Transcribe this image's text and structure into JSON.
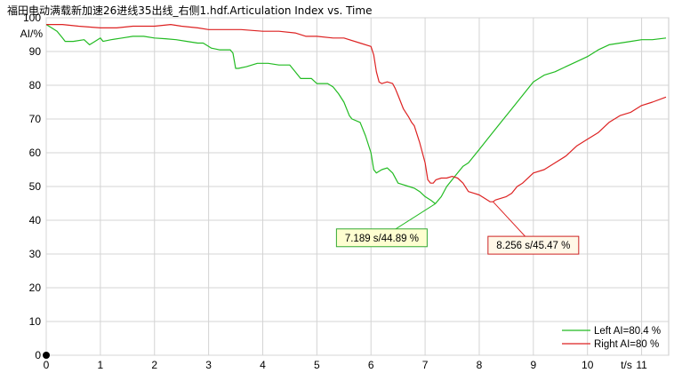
{
  "window": {
    "title": "福田电动满载新加速26进线35出线_右侧1.hdf.Articulation Index vs. Time"
  },
  "chart_data": {
    "type": "line",
    "title": "福田电动满载新加速26进线35出线_右侧1.hdf.Articulation Index vs. Time",
    "xlabel": "t/s",
    "ylabel": "AI/%",
    "xlim": [
      0,
      11.5
    ],
    "ylim": [
      0,
      100
    ],
    "x_ticks": [
      0,
      1,
      2,
      3,
      4,
      5,
      6,
      7,
      8,
      9,
      10,
      11
    ],
    "y_ticks": [
      0,
      10,
      20,
      30,
      40,
      50,
      60,
      70,
      80,
      90,
      100
    ],
    "grid": true,
    "legend_position": "bottom-right",
    "series": [
      {
        "name": "Left AI=80.4 %",
        "color": "#22bb22",
        "x": [
          0,
          0.1,
          0.2,
          0.3,
          0.35,
          0.5,
          0.7,
          0.8,
          0.9,
          1.0,
          1.05,
          1.2,
          1.4,
          1.6,
          1.8,
          2.0,
          2.2,
          2.4,
          2.6,
          2.8,
          2.9,
          3.0,
          3.05,
          3.2,
          3.4,
          3.45,
          3.5,
          3.55,
          3.7,
          3.9,
          4.1,
          4.3,
          4.5,
          4.6,
          4.7,
          4.8,
          4.9,
          5.0,
          5.2,
          5.3,
          5.4,
          5.5,
          5.6,
          5.65,
          5.8,
          5.9,
          6.0,
          6.05,
          6.1,
          6.15,
          6.2,
          6.3,
          6.4,
          6.5,
          6.6,
          6.7,
          6.8,
          6.9,
          7.0,
          7.1,
          7.189,
          7.3,
          7.4,
          7.5,
          7.6,
          7.7,
          7.8,
          8.0,
          8.2,
          8.4,
          8.6,
          8.8,
          9.0,
          9.2,
          9.4,
          9.6,
          9.8,
          10.0,
          10.2,
          10.4,
          10.6,
          10.8,
          11.0,
          11.2,
          11.45
        ],
        "y": [
          98,
          97,
          96,
          94,
          93,
          93,
          93.5,
          92,
          93,
          94,
          93,
          93.5,
          94,
          94.5,
          94.5,
          94,
          93.8,
          93.5,
          93,
          92.5,
          92.5,
          91.5,
          91,
          90.5,
          90.5,
          89.5,
          85,
          85,
          85.5,
          86.5,
          86.5,
          86,
          86,
          84,
          82,
          82,
          82,
          80.5,
          80.5,
          79.5,
          77.5,
          75,
          71,
          70,
          69,
          65,
          60,
          55,
          54,
          54.5,
          55,
          55.5,
          54,
          51,
          50.5,
          50,
          49.5,
          48.5,
          47,
          46,
          44.89,
          47,
          50,
          52,
          54,
          56,
          57,
          61,
          65,
          69,
          73,
          77,
          81,
          83,
          84,
          85.5,
          87,
          88.5,
          90.5,
          92,
          92.5,
          93,
          93.5,
          93.5,
          94
        ]
      },
      {
        "name": "Right AI=80 %",
        "color": "#dd2222",
        "x": [
          0,
          0.3,
          0.6,
          1.0,
          1.3,
          1.6,
          2.0,
          2.3,
          2.5,
          2.8,
          3.0,
          3.3,
          3.6,
          4.0,
          4.3,
          4.6,
          4.8,
          5.0,
          5.3,
          5.5,
          5.8,
          6.0,
          6.05,
          6.1,
          6.15,
          6.2,
          6.3,
          6.4,
          6.45,
          6.5,
          6.6,
          6.7,
          6.75,
          6.8,
          6.9,
          7.0,
          7.05,
          7.1,
          7.15,
          7.2,
          7.3,
          7.4,
          7.5,
          7.6,
          7.7,
          7.8,
          7.9,
          8.0,
          8.1,
          8.2,
          8.256,
          8.3,
          8.4,
          8.5,
          8.6,
          8.7,
          8.8,
          9.0,
          9.2,
          9.4,
          9.6,
          9.8,
          10.0,
          10.2,
          10.4,
          10.6,
          10.8,
          11.0,
          11.2,
          11.45
        ],
        "y": [
          98,
          98,
          97.5,
          97,
          97,
          97.5,
          97.5,
          98,
          97.5,
          97,
          96.5,
          96.5,
          96.5,
          96,
          96,
          95.5,
          94.5,
          94.5,
          94,
          94,
          92.5,
          91.5,
          89,
          84,
          81,
          80.5,
          81,
          80.5,
          79,
          77,
          73,
          70.5,
          69,
          68,
          63,
          57,
          52,
          51,
          51,
          52,
          52.5,
          52.5,
          53,
          52.5,
          51,
          48.5,
          48,
          47.5,
          46.5,
          45.5,
          45.47,
          46,
          46.5,
          47,
          48,
          50,
          51,
          54,
          55,
          57,
          59,
          62,
          64,
          66,
          69,
          71,
          72,
          74,
          75,
          76.5
        ]
      }
    ],
    "annotations": [
      {
        "series": 0,
        "x": 7.189,
        "y": 44.89,
        "label": "7.189 s/44.89 %",
        "label_x": 6.2,
        "label_y": 34.8
      },
      {
        "series": 1,
        "x": 8.256,
        "y": 45.47,
        "label": "8.256 s/45.47 %",
        "label_x": 9.0,
        "label_y": 32.6
      }
    ]
  }
}
